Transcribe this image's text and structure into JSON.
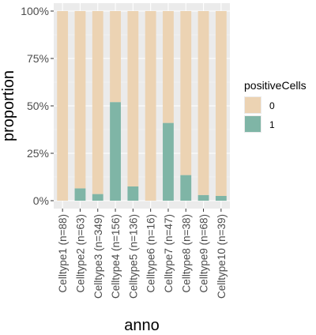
{
  "chart_data": {
    "type": "bar",
    "stacked": true,
    "title": "",
    "xlabel": "anno",
    "ylabel": "proportion",
    "ylim": [
      0,
      1
    ],
    "y_ticks": [
      "0%",
      "25%",
      "50%",
      "75%",
      "100%"
    ],
    "y_tick_values": [
      0,
      0.25,
      0.5,
      0.75,
      1
    ],
    "categories": [
      "Celltype1 (n=88)",
      "Celltype2 (n=63)",
      "Celltype3 (n=349)",
      "Celltype4 (n=156)",
      "Celltype5 (n=136)",
      "Celltype6 (n=16)",
      "Celltype7 (n=47)",
      "Celltype8 (n=38)",
      "Celltype9 (n=68)",
      "Celltype10 (n=39)"
    ],
    "legend": {
      "title": "positiveCells",
      "placement": "right"
    },
    "series": [
      {
        "name": "1",
        "color": "#7fb5a6",
        "values": [
          0.0,
          0.065,
          0.035,
          0.52,
          0.075,
          0.0,
          0.41,
          0.135,
          0.03,
          0.025
        ]
      },
      {
        "name": "0",
        "color": "#ecd3b3",
        "values": [
          1.0,
          0.935,
          0.965,
          0.48,
          0.925,
          1.0,
          0.59,
          0.865,
          0.97,
          0.975
        ]
      }
    ],
    "grid": true,
    "panel_background": "#ebebeb"
  }
}
